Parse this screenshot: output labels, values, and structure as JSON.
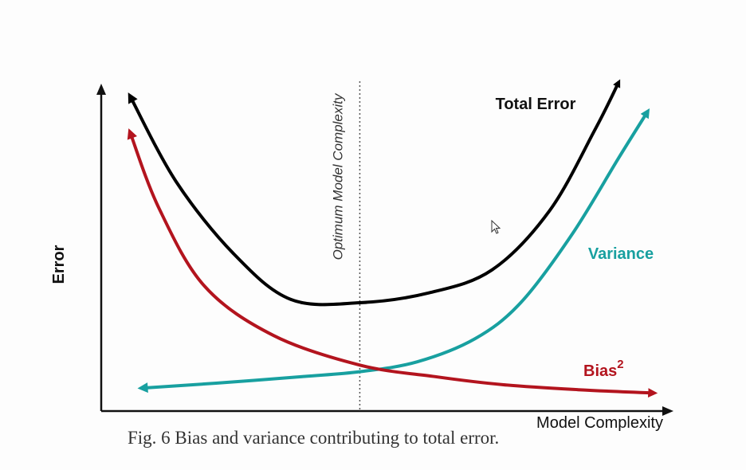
{
  "chart_data": {
    "type": "line",
    "title": "",
    "xlabel": "Model Complexity",
    "ylabel": "Error",
    "xlim": [
      0,
      10
    ],
    "ylim": [
      0,
      10
    ],
    "ticks": "none",
    "grid": false,
    "optimum": {
      "label": "Optimum Model Complexity",
      "x": 4.5
    },
    "series": [
      {
        "name": "Total Error",
        "color": "#000000",
        "x": [
          0.5,
          1.3,
          2.3,
          3.3,
          4.5,
          5.7,
          6.8,
          7.8,
          8.6,
          9.0
        ],
        "y": [
          9.6,
          7.0,
          4.8,
          3.4,
          3.3,
          3.6,
          4.3,
          6.1,
          8.6,
          10.0
        ]
      },
      {
        "name": "Variance",
        "color": "#18a0a0",
        "x": [
          0.7,
          2.0,
          3.5,
          4.5,
          5.5,
          6.5,
          7.3,
          8.2,
          9.0,
          9.5
        ],
        "y": [
          0.7,
          0.85,
          1.05,
          1.2,
          1.5,
          2.2,
          3.3,
          5.4,
          7.7,
          9.1
        ]
      },
      {
        "name": "Bias",
        "superscript": "2",
        "color": "#b3141e",
        "x": [
          0.5,
          1.0,
          1.8,
          3.0,
          4.5,
          5.8,
          7.0,
          8.3,
          9.6
        ],
        "y": [
          8.5,
          6.2,
          3.8,
          2.3,
          1.4,
          1.05,
          0.8,
          0.65,
          0.55
        ]
      }
    ]
  },
  "caption": "Fig. 6 Bias and variance contributing to total error."
}
